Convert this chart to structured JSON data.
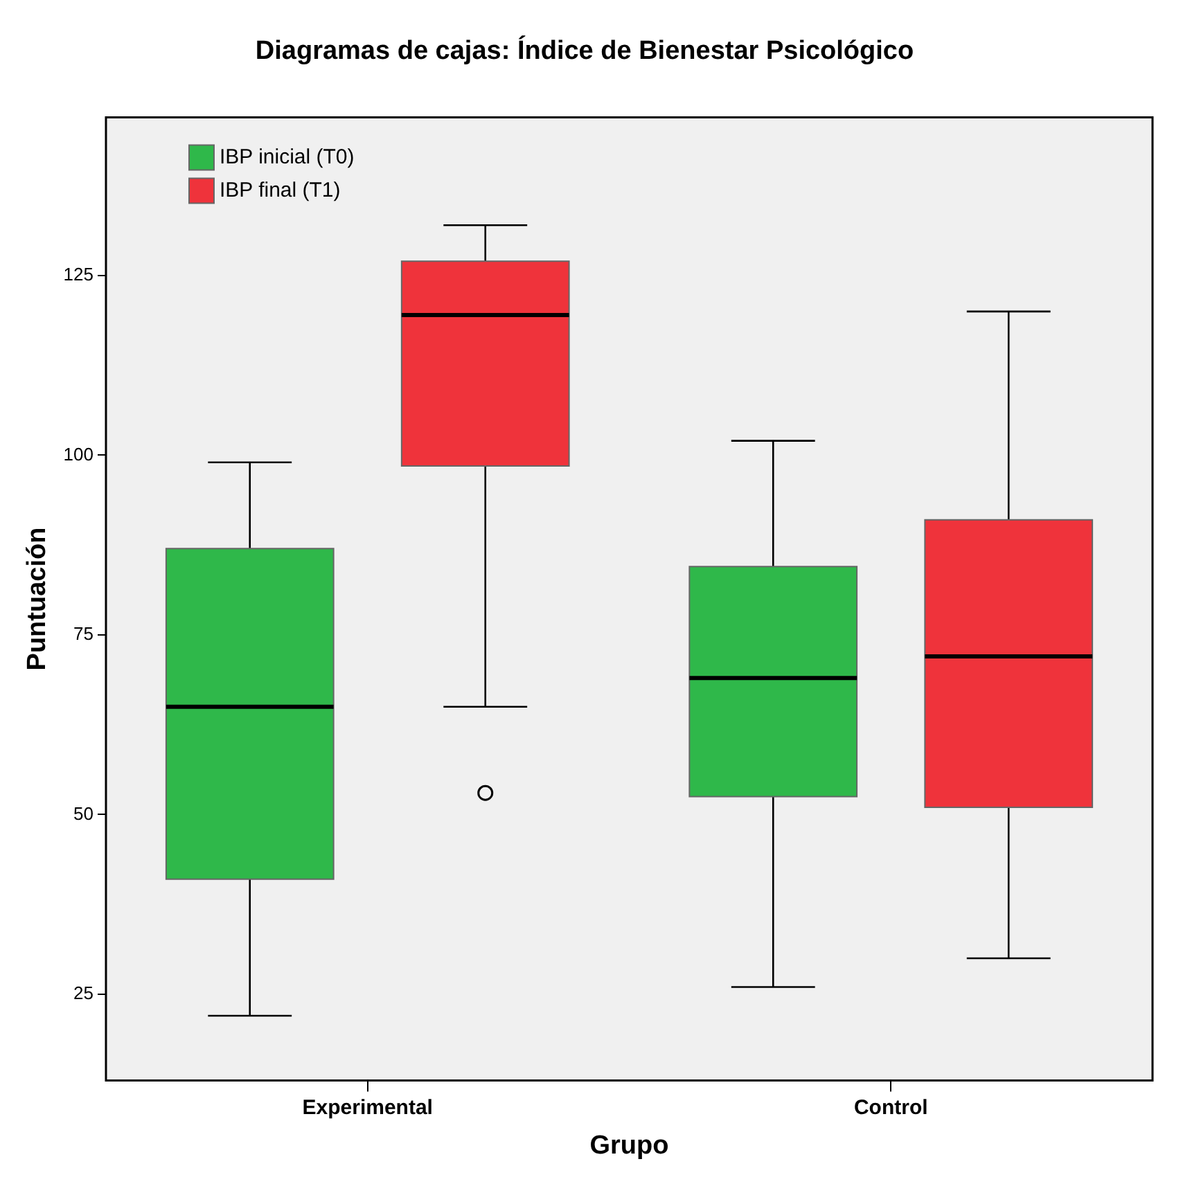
{
  "chart_data": {
    "type": "box",
    "title": "Diagramas de cajas: Índice de Bienestar Psicológico",
    "xlabel": "Grupo",
    "ylabel": "Puntuación",
    "categories": [
      "Experimental",
      "Control"
    ],
    "series": [
      {
        "name": "IBP inicial (T0)",
        "color": "#2fb84a",
        "boxes": [
          {
            "low": 22,
            "q1": 41,
            "median": 65,
            "q3": 87,
            "high": 99
          },
          {
            "low": 26,
            "q1": 52.5,
            "median": 69,
            "q3": 84.5,
            "high": 102
          }
        ]
      },
      {
        "name": "IBP final (T1)",
        "color": "#ef333b",
        "boxes": [
          {
            "low": 65,
            "q1": 98.5,
            "median": 119.5,
            "q3": 127,
            "high": 132,
            "outliers": [
              53
            ]
          },
          {
            "low": 30,
            "q1": 51,
            "median": 72,
            "q3": 91,
            "high": 120
          }
        ]
      }
    ],
    "ylim": [
      13,
      147
    ],
    "yticks": [
      25,
      50,
      75,
      100,
      125
    ],
    "legend": "top left"
  }
}
